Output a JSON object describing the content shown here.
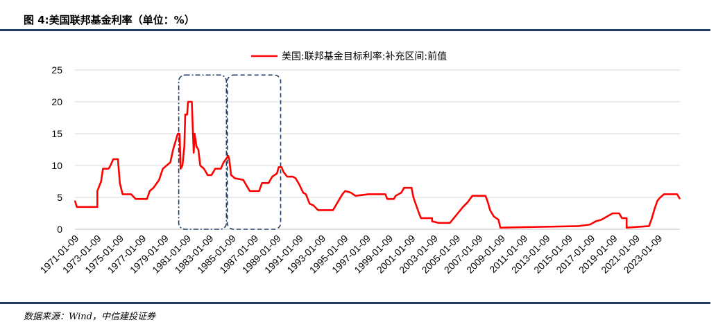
{
  "header": {
    "title": "图 4:美国联邦基金利率（单位：%）"
  },
  "footer": {
    "source": "数据来源：Wind，中信建投证券"
  },
  "colors": {
    "series": "#ff0000",
    "rule": "#1f3c64",
    "box": "#1f3c64"
  },
  "chart_data": {
    "type": "line",
    "title": "",
    "xlabel": "",
    "ylabel": "",
    "ylim": [
      0,
      25
    ],
    "yticks": [
      0,
      5,
      10,
      15,
      20,
      25
    ],
    "xlim": [
      "1971-01",
      "2024-12"
    ],
    "xticks": [
      "1971-01-09",
      "1973-01-09",
      "1975-01-09",
      "1977-01-09",
      "1979-01-09",
      "1981-01-09",
      "1983-01-09",
      "1985-01-09",
      "1987-01-09",
      "1989-01-09",
      "1991-01-09",
      "1993-01-09",
      "1995-01-09",
      "1997-01-09",
      "1999-01-09",
      "2001-01-09",
      "2003-01-09",
      "2005-01-09",
      "2007-01-09",
      "2009-01-09",
      "2011-01-09",
      "2013-01-09",
      "2015-01-09",
      "2017-01-09",
      "2019-01-09",
      "2021-01-09",
      "2023-01-09"
    ],
    "grid": {
      "horizontal": true,
      "vertical": false
    },
    "legend": {
      "position": "top-center"
    },
    "series": [
      {
        "name": "美国:联邦基金目标利率:补充区间:前值",
        "points": [
          [
            "1971-01",
            4.5
          ],
          [
            "1971-03",
            3.5
          ],
          [
            "1972-01",
            3.5
          ],
          [
            "1973-01",
            3.5
          ],
          [
            "1973-01",
            6.0
          ],
          [
            "1973-05",
            7.5
          ],
          [
            "1973-07",
            9.5
          ],
          [
            "1974-01",
            9.5
          ],
          [
            "1974-03",
            10.0
          ],
          [
            "1974-06",
            11.0
          ],
          [
            "1974-11",
            11.0
          ],
          [
            "1975-01",
            7.25
          ],
          [
            "1975-04",
            5.5
          ],
          [
            "1976-01",
            5.5
          ],
          [
            "1976-06",
            4.75
          ],
          [
            "1977-01",
            4.75
          ],
          [
            "1977-06",
            4.75
          ],
          [
            "1977-09",
            6.0
          ],
          [
            "1978-01",
            6.5
          ],
          [
            "1978-07",
            7.75
          ],
          [
            "1978-11",
            9.5
          ],
          [
            "1979-03",
            10.0
          ],
          [
            "1979-07",
            10.5
          ],
          [
            "1979-10",
            12.5
          ],
          [
            "1979-12",
            13.5
          ],
          [
            "1980-03",
            15.0
          ],
          [
            "1980-05",
            15.0
          ],
          [
            "1980-06",
            9.5
          ],
          [
            "1980-08",
            10.0
          ],
          [
            "1980-10",
            13.0
          ],
          [
            "1980-11",
            18.0
          ],
          [
            "1981-01",
            18.0
          ],
          [
            "1981-02",
            20.0
          ],
          [
            "1981-06",
            20.0
          ],
          [
            "1981-07",
            16.0
          ],
          [
            "1981-08",
            12.0
          ],
          [
            "1981-09",
            15.0
          ],
          [
            "1981-11",
            13.0
          ],
          [
            "1982-01",
            12.5
          ],
          [
            "1982-03",
            10.0
          ],
          [
            "1982-07",
            9.5
          ],
          [
            "1982-11",
            8.5
          ],
          [
            "1983-03",
            8.5
          ],
          [
            "1983-07",
            9.5
          ],
          [
            "1984-01",
            9.5
          ],
          [
            "1984-04",
            10.5
          ],
          [
            "1984-09",
            11.5
          ],
          [
            "1984-10",
            11.0
          ],
          [
            "1984-12",
            8.5
          ],
          [
            "1985-04",
            8.0
          ],
          [
            "1986-01",
            7.75
          ],
          [
            "1986-04",
            7.0
          ],
          [
            "1986-08",
            6.0
          ],
          [
            "1987-01",
            6.0
          ],
          [
            "1987-06",
            6.0
          ],
          [
            "1987-09",
            7.25
          ],
          [
            "1988-01",
            7.25
          ],
          [
            "1988-04",
            7.25
          ],
          [
            "1988-08",
            8.25
          ],
          [
            "1989-01",
            8.75
          ],
          [
            "1989-03",
            9.75
          ],
          [
            "1989-06",
            9.75
          ],
          [
            "1989-08",
            9.0
          ],
          [
            "1989-12",
            8.25
          ],
          [
            "1990-06",
            8.25
          ],
          [
            "1990-09",
            8.0
          ],
          [
            "1991-01",
            7.0
          ],
          [
            "1991-05",
            5.75
          ],
          [
            "1991-08",
            5.5
          ],
          [
            "1991-12",
            4.0
          ],
          [
            "1992-04",
            3.75
          ],
          [
            "1992-09",
            3.0
          ],
          [
            "1993-06",
            3.0
          ],
          [
            "1994-01",
            3.0
          ],
          [
            "1994-05",
            4.0
          ],
          [
            "1994-08",
            4.75
          ],
          [
            "1994-11",
            5.5
          ],
          [
            "1995-02",
            6.0
          ],
          [
            "1995-08",
            5.75
          ],
          [
            "1996-01",
            5.25
          ],
          [
            "1997-03",
            5.5
          ],
          [
            "1998-09",
            5.5
          ],
          [
            "1998-11",
            4.75
          ],
          [
            "1999-06",
            4.75
          ],
          [
            "1999-08",
            5.25
          ],
          [
            "2000-02",
            5.75
          ],
          [
            "2000-05",
            6.5
          ],
          [
            "2001-01",
            6.5
          ],
          [
            "2001-03",
            5.0
          ],
          [
            "2001-06",
            3.75
          ],
          [
            "2001-09",
            2.5
          ],
          [
            "2001-11",
            1.75
          ],
          [
            "2002-11",
            1.75
          ],
          [
            "2002-11",
            1.25
          ],
          [
            "2003-06",
            1.0
          ],
          [
            "2004-06",
            1.0
          ],
          [
            "2005-01",
            2.25
          ],
          [
            "2005-08",
            3.5
          ],
          [
            "2006-01",
            4.25
          ],
          [
            "2006-06",
            5.25
          ],
          [
            "2007-08",
            5.25
          ],
          [
            "2007-10",
            4.5
          ],
          [
            "2008-01",
            3.0
          ],
          [
            "2008-05",
            2.0
          ],
          [
            "2008-10",
            1.5
          ],
          [
            "2008-12",
            0.25
          ],
          [
            "2015-12",
            0.5
          ],
          [
            "2016-12",
            0.75
          ],
          [
            "2017-06",
            1.25
          ],
          [
            "2017-12",
            1.5
          ],
          [
            "2018-06",
            2.0
          ],
          [
            "2018-12",
            2.5
          ],
          [
            "2019-07",
            2.5
          ],
          [
            "2019-08",
            2.25
          ],
          [
            "2019-10",
            1.75
          ],
          [
            "2020-03",
            1.75
          ],
          [
            "2020-03",
            0.25
          ],
          [
            "2022-03",
            0.5
          ],
          [
            "2022-06",
            1.75
          ],
          [
            "2022-09",
            3.25
          ],
          [
            "2022-12",
            4.5
          ],
          [
            "2023-03",
            5.0
          ],
          [
            "2023-07",
            5.5
          ],
          [
            "2024-09",
            5.5
          ],
          [
            "2024-11",
            5.0
          ],
          [
            "2024-12",
            4.75
          ]
        ]
      }
    ],
    "annotation_boxes": [
      {
        "style": "dash-dot",
        "x0": "1980-04",
        "x1": "1984-07",
        "y0": 0,
        "y1": 24.2
      },
      {
        "style": "dashed",
        "x0": "1984-08",
        "x1": "1989-05",
        "y0": 0,
        "y1": 24.2
      }
    ]
  }
}
